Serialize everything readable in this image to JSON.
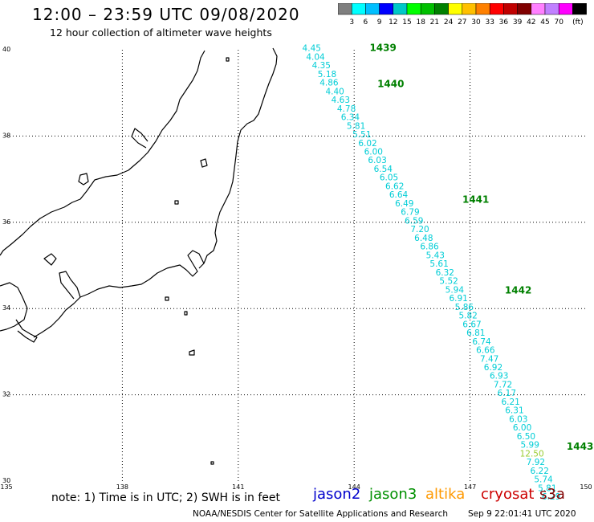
{
  "header": {
    "title": "12:00 – 23:59 UTC 09/08/2020",
    "subtitle": "12 hour collection of altimeter wave heights"
  },
  "colorbar": {
    "labels": [
      "3",
      "6",
      "9",
      "12",
      "15",
      "18",
      "21",
      "24",
      "27",
      "30",
      "33",
      "36",
      "39",
      "42",
      "45",
      "70"
    ],
    "unit": "(ft)",
    "colors": [
      "#7f7f7f",
      "#00ffff",
      "#00bfff",
      "#0000ff",
      "#00c8c8",
      "#00ff00",
      "#00c000",
      "#008000",
      "#ffff00",
      "#ffc000",
      "#ff8000",
      "#ff0000",
      "#c00000",
      "#800000",
      "#ff80ff",
      "#c080ff",
      "#ff00ff",
      "#000000"
    ]
  },
  "map": {
    "lat_labels": [
      "40",
      "38",
      "36",
      "34",
      "32",
      "30"
    ],
    "lon_labels": [
      "135",
      "138",
      "141",
      "144",
      "147",
      "150"
    ]
  },
  "chart_data": {
    "type": "scatter",
    "xlim": [
      135,
      150
    ],
    "ylim": [
      30,
      40
    ],
    "grid": true,
    "pass_labels": [
      {
        "text": "1439",
        "lon": 144.4,
        "lat": 39.97
      },
      {
        "text": "1440",
        "lon": 144.6,
        "lat": 39.13
      },
      {
        "text": "1441",
        "lon": 146.8,
        "lat": 36.45
      },
      {
        "text": "1442",
        "lon": 147.9,
        "lat": 34.35
      },
      {
        "text": "1443",
        "lon": 149.5,
        "lat": 30.73
      }
    ],
    "points": [
      {
        "lon": 142.9,
        "lat": 39.97,
        "value": "4.45"
      },
      {
        "lon": 143.0,
        "lat": 39.77,
        "value": "4.04"
      },
      {
        "lon": 143.15,
        "lat": 39.57,
        "value": "4.35"
      },
      {
        "lon": 143.3,
        "lat": 39.37,
        "value": "5.18"
      },
      {
        "lon": 143.35,
        "lat": 39.17,
        "value": "4.86"
      },
      {
        "lon": 143.5,
        "lat": 38.97,
        "value": "4.40"
      },
      {
        "lon": 143.65,
        "lat": 38.77,
        "value": "4.63"
      },
      {
        "lon": 143.8,
        "lat": 38.57,
        "value": "4.78"
      },
      {
        "lon": 143.9,
        "lat": 38.37,
        "value": "6.34"
      },
      {
        "lon": 144.05,
        "lat": 38.17,
        "value": "5.81"
      },
      {
        "lon": 144.2,
        "lat": 37.97,
        "value": "5.51"
      },
      {
        "lon": 144.35,
        "lat": 37.77,
        "value": "6.02"
      },
      {
        "lon": 144.5,
        "lat": 37.57,
        "value": "6.00"
      },
      {
        "lon": 144.6,
        "lat": 37.37,
        "value": "6.03"
      },
      {
        "lon": 144.75,
        "lat": 37.17,
        "value": "6.54"
      },
      {
        "lon": 144.9,
        "lat": 36.97,
        "value": "6.05"
      },
      {
        "lon": 145.05,
        "lat": 36.77,
        "value": "6.62"
      },
      {
        "lon": 145.15,
        "lat": 36.57,
        "value": "6.64"
      },
      {
        "lon": 145.3,
        "lat": 36.37,
        "value": "6.49"
      },
      {
        "lon": 145.45,
        "lat": 36.17,
        "value": "6.79"
      },
      {
        "lon": 145.55,
        "lat": 35.97,
        "value": "6.59"
      },
      {
        "lon": 145.7,
        "lat": 35.77,
        "value": "7.20"
      },
      {
        "lon": 145.8,
        "lat": 35.57,
        "value": "6.48"
      },
      {
        "lon": 145.95,
        "lat": 35.37,
        "value": "6.86"
      },
      {
        "lon": 146.1,
        "lat": 35.17,
        "value": "5.43"
      },
      {
        "lon": 146.2,
        "lat": 34.97,
        "value": "5.61"
      },
      {
        "lon": 146.35,
        "lat": 34.77,
        "value": "6.32"
      },
      {
        "lon": 146.45,
        "lat": 34.57,
        "value": "5.52"
      },
      {
        "lon": 146.6,
        "lat": 34.37,
        "value": "5.94"
      },
      {
        "lon": 146.7,
        "lat": 34.17,
        "value": "6.91"
      },
      {
        "lon": 146.85,
        "lat": 33.97,
        "value": "5.86"
      },
      {
        "lon": 146.95,
        "lat": 33.77,
        "value": "5.82"
      },
      {
        "lon": 147.05,
        "lat": 33.57,
        "value": "6.67"
      },
      {
        "lon": 147.15,
        "lat": 33.37,
        "value": "6.81"
      },
      {
        "lon": 147.3,
        "lat": 33.17,
        "value": "6.74"
      },
      {
        "lon": 147.4,
        "lat": 32.97,
        "value": "6.66"
      },
      {
        "lon": 147.5,
        "lat": 32.77,
        "value": "7.47"
      },
      {
        "lon": 147.6,
        "lat": 32.57,
        "value": "6.92"
      },
      {
        "lon": 147.75,
        "lat": 32.37,
        "value": "6.93"
      },
      {
        "lon": 147.85,
        "lat": 32.17,
        "value": "7.72"
      },
      {
        "lon": 147.95,
        "lat": 31.97,
        "value": "6.17"
      },
      {
        "lon": 148.05,
        "lat": 31.77,
        "value": "6.21"
      },
      {
        "lon": 148.15,
        "lat": 31.57,
        "value": "6.31"
      },
      {
        "lon": 148.25,
        "lat": 31.37,
        "value": "6.03"
      },
      {
        "lon": 148.35,
        "lat": 31.17,
        "value": "6.00"
      },
      {
        "lon": 148.45,
        "lat": 30.97,
        "value": "6.50"
      },
      {
        "lon": 148.55,
        "lat": 30.77,
        "value": "5.99"
      },
      {
        "lon": 148.6,
        "lat": 30.57,
        "value": "12.50",
        "color": "#9acd32"
      },
      {
        "lon": 148.7,
        "lat": 30.37,
        "value": "7.92"
      },
      {
        "lon": 148.8,
        "lat": 30.17,
        "value": "6.22"
      },
      {
        "lon": 148.9,
        "lat": 29.97,
        "value": "5.74"
      },
      {
        "lon": 149.0,
        "lat": 29.77,
        "value": "5.81"
      },
      {
        "lon": 149.1,
        "lat": 29.57,
        "value": "6.29"
      }
    ]
  },
  "note": "note: 1) Time is in UTC; 2) SWH is in feet",
  "satellites": [
    {
      "name": "jason2",
      "color": "#0000cc"
    },
    {
      "name": "jason3",
      "color": "#009000"
    },
    {
      "name": "altika",
      "color": "#ff9900"
    },
    {
      "name": "cryosat",
      "color": "#cc0000"
    },
    {
      "name": "s3a",
      "color": "#800000"
    }
  ],
  "footer": {
    "credit": "NOAA/NESDIS Center for Satellite Applications and Research",
    "timestamp": "Sep  9 22:01:41 UTC 2020"
  }
}
